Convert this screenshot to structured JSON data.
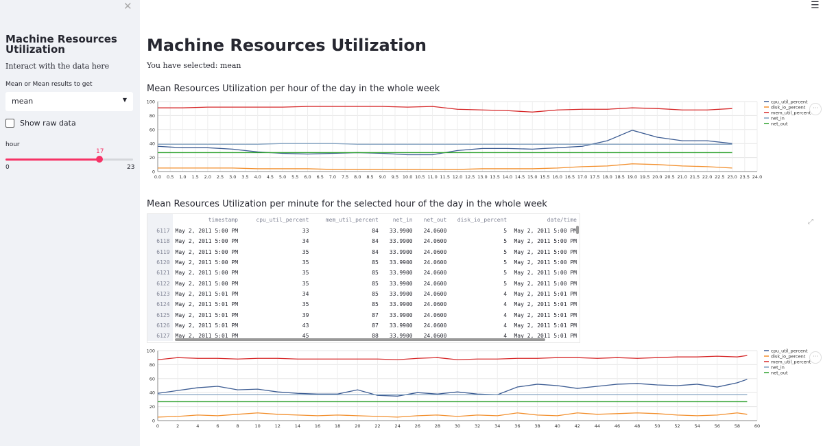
{
  "sidebar": {
    "title": "Machine Resources Utilization",
    "subtitle": "Interact with the data here",
    "select_label": "Mean or Mean results to get",
    "select_value": "mean",
    "checkbox_label": "Show raw data",
    "slider_label": "hour",
    "slider_value": "17",
    "slider_min": "0",
    "slider_max": "23",
    "slider_fraction": 0.739
  },
  "main": {
    "title": "Machine Resources Utilization",
    "selected_text": "You have selected: mean",
    "hourly_heading": "Mean Resources Utilization per hour of the day in the whole week",
    "minute_heading": "Mean Resources Utilization per minute for the selected hour of the day in the whole week"
  },
  "colors": {
    "cpu_util_percent": "#3b5b92",
    "disk_io_percent": "#f28e2b",
    "mem_util_percent": "#d62728",
    "net_in": "#7f9fbf",
    "net_out": "#2ca02c"
  },
  "chart_data": [
    {
      "type": "line",
      "ylim": [
        0,
        100
      ],
      "xlim": [
        0,
        24
      ],
      "yticks": [
        "0",
        "20",
        "40",
        "60",
        "80",
        "100"
      ],
      "xticks": [
        "0.0",
        "0.5",
        "1.0",
        "1.5",
        "2.0",
        "2.5",
        "3.0",
        "3.5",
        "4.0",
        "4.5",
        "5.0",
        "5.5",
        "6.0",
        "6.5",
        "7.0",
        "7.5",
        "8.0",
        "8.5",
        "9.0",
        "9.5",
        "10.0",
        "10.5",
        "11.0",
        "11.5",
        "12.0",
        "12.5",
        "13.0",
        "13.5",
        "14.0",
        "14.5",
        "15.0",
        "15.5",
        "16.0",
        "16.5",
        "17.0",
        "17.5",
        "18.0",
        "18.5",
        "19.0",
        "19.5",
        "20.0",
        "20.5",
        "21.0",
        "21.5",
        "22.0",
        "22.5",
        "23.0",
        "23.5",
        "24.0"
      ],
      "legend_position": "right",
      "x": [
        0,
        1,
        2,
        3,
        4,
        5,
        6,
        7,
        8,
        9,
        10,
        11,
        12,
        13,
        14,
        15,
        16,
        17,
        18,
        19,
        20,
        21,
        22,
        23
      ],
      "series": [
        {
          "name": "cpu_util_percent",
          "values": [
            36,
            34,
            34,
            32,
            28,
            26,
            25,
            26,
            27,
            26,
            24,
            24,
            30,
            33,
            33,
            32,
            34,
            36,
            44,
            59,
            49,
            44,
            44,
            40
          ]
        },
        {
          "name": "disk_io_percent",
          "values": [
            5,
            5,
            5,
            5,
            4,
            4,
            4,
            3,
            3,
            3,
            3,
            3,
            3,
            4,
            4,
            4,
            5,
            7,
            8,
            11,
            10,
            8,
            7,
            5
          ]
        },
        {
          "name": "mem_util_percent",
          "values": [
            91,
            91,
            92,
            92,
            92,
            92,
            93,
            93,
            93,
            93,
            92,
            93,
            89,
            88,
            87,
            85,
            88,
            89,
            89,
            91,
            90,
            88,
            88,
            90
          ]
        },
        {
          "name": "net_in",
          "values": [
            39,
            39,
            39,
            39,
            39,
            40,
            40,
            40,
            39,
            39,
            39,
            39,
            39,
            39,
            39,
            39,
            39,
            39,
            39,
            39,
            39,
            39,
            39,
            39
          ]
        },
        {
          "name": "net_out",
          "values": [
            27,
            27,
            27,
            27,
            27,
            27,
            27,
            27,
            27,
            27,
            27,
            27,
            27,
            27,
            27,
            27,
            27,
            27,
            27,
            27,
            27,
            27,
            27,
            27
          ]
        }
      ]
    },
    {
      "type": "line",
      "ylim": [
        0,
        100
      ],
      "xlim": [
        0,
        60
      ],
      "yticks": [
        "0",
        "20",
        "40",
        "60",
        "80",
        "100"
      ],
      "xticks": [
        "0",
        "2",
        "4",
        "6",
        "8",
        "10",
        "12",
        "14",
        "16",
        "18",
        "20",
        "22",
        "24",
        "26",
        "28",
        "30",
        "32",
        "34",
        "36",
        "38",
        "40",
        "42",
        "44",
        "46",
        "48",
        "50",
        "52",
        "54",
        "56",
        "58",
        "60"
      ],
      "legend_position": "right",
      "x": [
        0,
        2,
        4,
        6,
        8,
        10,
        12,
        14,
        16,
        18,
        20,
        22,
        24,
        26,
        28,
        30,
        32,
        34,
        36,
        38,
        40,
        42,
        44,
        46,
        48,
        50,
        52,
        54,
        56,
        58,
        59
      ],
      "series": [
        {
          "name": "cpu_util_percent",
          "values": [
            39,
            43,
            47,
            49,
            44,
            45,
            41,
            39,
            38,
            38,
            44,
            36,
            35,
            40,
            38,
            41,
            38,
            37,
            48,
            52,
            50,
            46,
            49,
            52,
            53,
            51,
            50,
            52,
            48,
            54,
            59
          ]
        },
        {
          "name": "disk_io_percent",
          "values": [
            5,
            6,
            8,
            7,
            9,
            11,
            9,
            8,
            7,
            8,
            7,
            6,
            5,
            7,
            8,
            6,
            8,
            7,
            11,
            8,
            7,
            11,
            9,
            10,
            11,
            10,
            8,
            7,
            8,
            11,
            9
          ]
        },
        {
          "name": "mem_util_percent",
          "values": [
            87,
            90,
            89,
            89,
            88,
            89,
            89,
            88,
            88,
            88,
            88,
            88,
            87,
            89,
            90,
            87,
            88,
            88,
            89,
            89,
            90,
            90,
            89,
            90,
            89,
            90,
            91,
            91,
            92,
            91,
            93
          ]
        },
        {
          "name": "net_in",
          "values": [
            37,
            37,
            37,
            37,
            37,
            37,
            37,
            37,
            37,
            37,
            37,
            37,
            37,
            37,
            37,
            37,
            37,
            37,
            37,
            37,
            37,
            37,
            37,
            37,
            37,
            37,
            37,
            37,
            37,
            37,
            37
          ]
        },
        {
          "name": "net_out",
          "values": [
            27,
            27,
            27,
            27,
            27,
            27,
            27,
            27,
            27,
            27,
            27,
            27,
            27,
            27,
            27,
            27,
            27,
            27,
            27,
            27,
            27,
            27,
            27,
            27,
            27,
            27,
            27,
            27,
            27,
            27,
            27
          ]
        }
      ]
    }
  ],
  "table": {
    "headers": [
      "",
      "timestamp",
      "cpu_util_percent",
      "mem_util_percent",
      "net_in",
      "net_out",
      "disk_io_percent",
      "date/time"
    ],
    "rows": [
      [
        "6117",
        "May 2, 2011 5:00 PM",
        "33",
        "84",
        "33.9900",
        "24.0600",
        "5",
        "May 2, 2011 5:00 PM"
      ],
      [
        "6118",
        "May 2, 2011 5:00 PM",
        "34",
        "84",
        "33.9900",
        "24.0600",
        "5",
        "May 2, 2011 5:00 PM"
      ],
      [
        "6119",
        "May 2, 2011 5:00 PM",
        "35",
        "84",
        "33.9900",
        "24.0600",
        "5",
        "May 2, 2011 5:00 PM"
      ],
      [
        "6120",
        "May 2, 2011 5:00 PM",
        "35",
        "85",
        "33.9900",
        "24.0600",
        "5",
        "May 2, 2011 5:00 PM"
      ],
      [
        "6121",
        "May 2, 2011 5:00 PM",
        "35",
        "85",
        "33.9900",
        "24.0600",
        "5",
        "May 2, 2011 5:00 PM"
      ],
      [
        "6122",
        "May 2, 2011 5:00 PM",
        "35",
        "85",
        "33.9900",
        "24.0600",
        "5",
        "May 2, 2011 5:00 PM"
      ],
      [
        "6123",
        "May 2, 2011 5:01 PM",
        "34",
        "85",
        "33.9900",
        "24.0600",
        "4",
        "May 2, 2011 5:01 PM"
      ],
      [
        "6124",
        "May 2, 2011 5:01 PM",
        "35",
        "85",
        "33.9900",
        "24.0600",
        "4",
        "May 2, 2011 5:01 PM"
      ],
      [
        "6125",
        "May 2, 2011 5:01 PM",
        "39",
        "87",
        "33.9900",
        "24.0600",
        "4",
        "May 2, 2011 5:01 PM"
      ],
      [
        "6126",
        "May 2, 2011 5:01 PM",
        "43",
        "87",
        "33.9900",
        "24.0600",
        "4",
        "May 2, 2011 5:01 PM"
      ],
      [
        "6127",
        "May 2, 2011 5:01 PM",
        "45",
        "88",
        "33.9900",
        "24.0600",
        "4",
        "May 2, 2011 5:01 PM"
      ]
    ]
  }
}
